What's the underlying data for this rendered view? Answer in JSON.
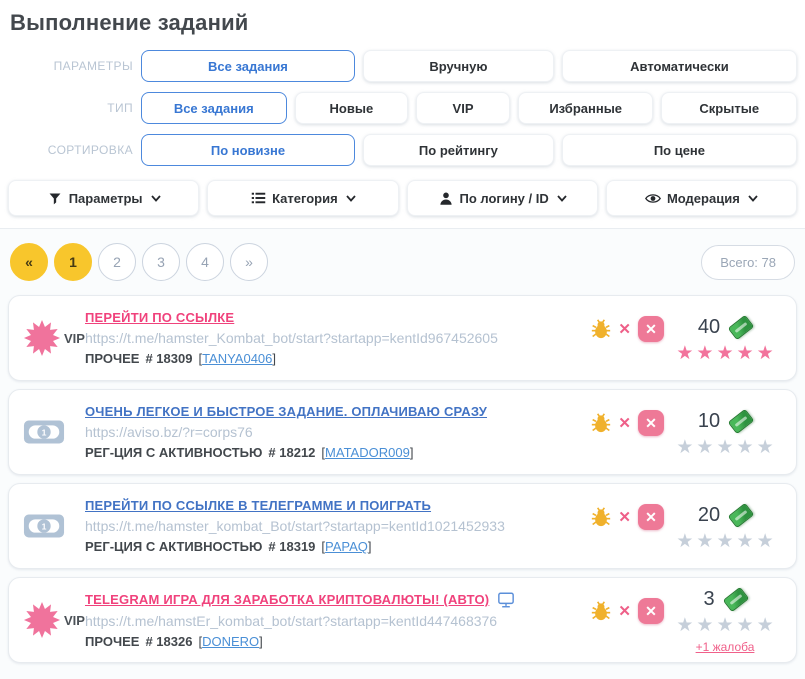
{
  "page": {
    "title": "Выполнение заданий"
  },
  "filters": {
    "rows": [
      {
        "label": "ПАРАМЕТРЫ",
        "options": [
          "Все задания",
          "Вручную",
          "Автоматически"
        ],
        "active_index": 0
      },
      {
        "label": "ТИП",
        "options": [
          "Все задания",
          "Новые",
          "VIP",
          "Избранные",
          "Скрытые"
        ],
        "active_index": 0
      },
      {
        "label": "СОРТИРОВКА",
        "options": [
          "По новизне",
          "По рейтингу",
          "По цене"
        ],
        "active_index": 0
      }
    ]
  },
  "dropdowns": [
    {
      "label": "Параметры",
      "icon": "funnel-icon"
    },
    {
      "label": "Категория",
      "icon": "list-icon"
    },
    {
      "label": "По логину / ID",
      "icon": "user-icon"
    },
    {
      "label": "Модерация",
      "icon": "eye-icon"
    }
  ],
  "pagination": {
    "first": "«",
    "last": "»",
    "pages": [
      "1",
      "2",
      "3",
      "4"
    ],
    "active_page": "1",
    "total": "Всего: 78"
  },
  "ui": {
    "bracket_open": "[",
    "bracket_close": "]"
  },
  "tasks": [
    {
      "badge": "vip",
      "badge_label": "VIP",
      "title": "ПЕРЕЙТИ ПО ССЫЛКЕ",
      "title_style": "pink",
      "url": "https://t.me/hamster_Kombat_bot/start?startapp=kentId967452605",
      "category": "ПРОЧЕЕ",
      "task_id": "# 18309",
      "username": "TANYA0406",
      "price": "40",
      "rating": 5
    },
    {
      "badge": "money",
      "title": "ОЧЕНЬ ЛЕГКОЕ И БЫСТРОЕ ЗАДАНИЕ. ОПЛАЧИВАЮ СРАЗУ",
      "title_style": "blue",
      "url": "https://aviso.bz/?r=corps76",
      "category": "РЕГ-ЦИЯ С АКТИВНОСТЬЮ",
      "task_id": "# 18212",
      "username": "MATADOR009",
      "price": "10",
      "rating": 0
    },
    {
      "badge": "money",
      "title": "ПЕРЕЙТИ ПО ССЫЛКЕ В ТЕЛЕГРАММЕ И ПОИГРАТЬ",
      "title_style": "blue",
      "url": "https://t.me/hamster_kombat_Bot/start?startapp=kentId1021452933",
      "category": "РЕГ-ЦИЯ С АКТИВНОСТЬЮ",
      "task_id": "# 18319",
      "username": "PAPAQ",
      "price": "20",
      "rating": 0
    },
    {
      "badge": "vip",
      "badge_label": "VIP",
      "title": "TELEGRAM ИГРА ДЛЯ ЗАРАБОТКА КРИПТОВАЛЮТЫ! (АВТО)",
      "title_style": "pink",
      "has_monitor_icon": true,
      "url": "https://t.me/hamstEr_kombat_bot/start?startapp=kentId447468376",
      "category": "ПРОЧЕЕ",
      "task_id": "# 18326",
      "username": "DONERO",
      "price": "3",
      "rating": 0,
      "complaint": "+1 жалоба"
    }
  ],
  "colors": {
    "accent_blue": "#3877d3",
    "accent_pink": "#f0427c",
    "pagination_yellow": "#f8c62c",
    "star_pink": "#f2739c",
    "star_gray": "#c6cfda",
    "ticket_green": "#2f9e3f"
  }
}
